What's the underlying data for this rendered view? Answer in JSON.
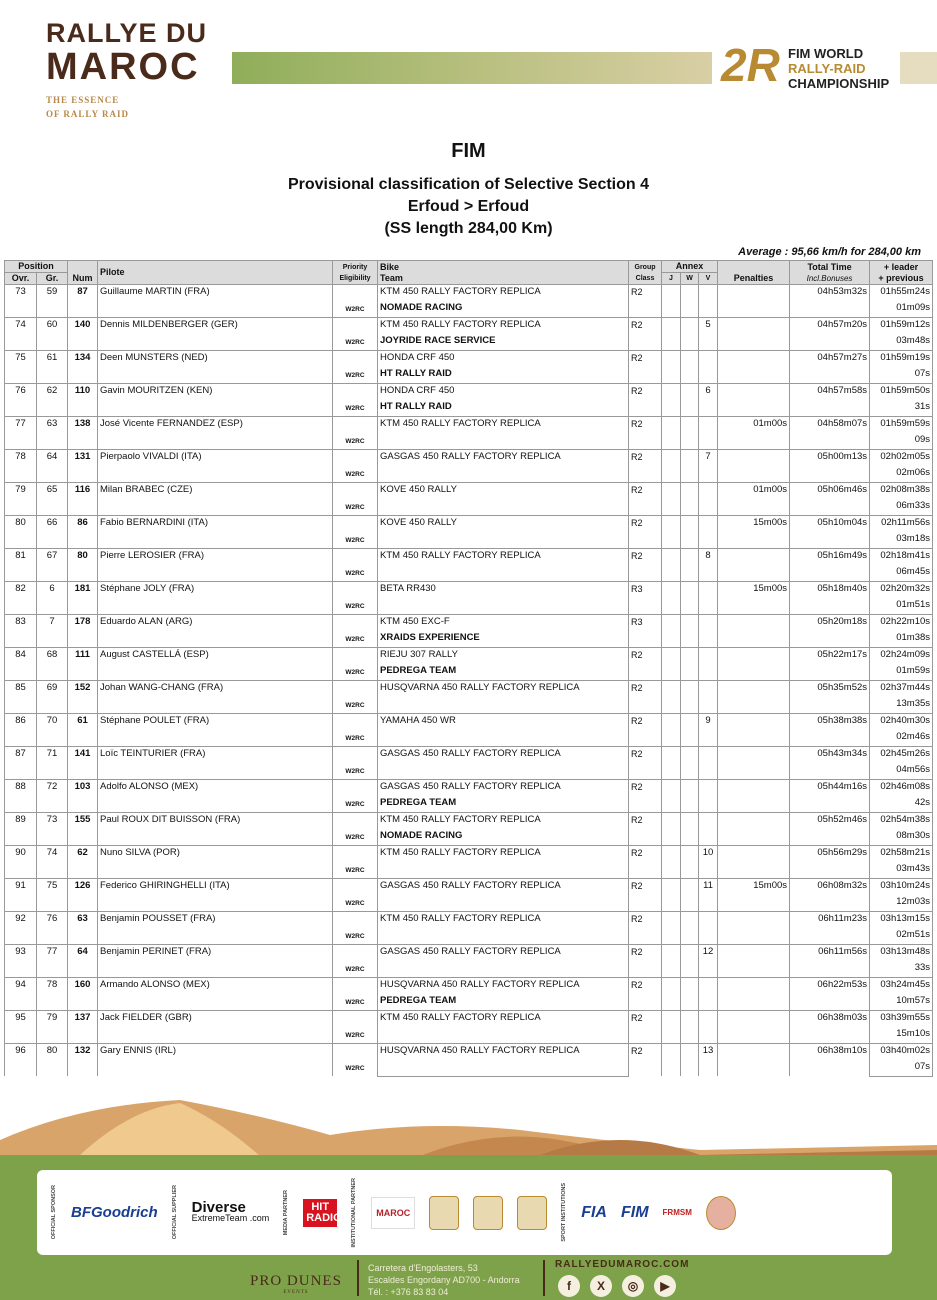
{
  "header": {
    "logo_left_line1": "RALLYE DU",
    "logo_left_line2": "MAROC",
    "logo_left_tag1": "THE ESSENCE",
    "logo_left_tag2": "OF RALLY RAID",
    "logo_right_mark": "2R",
    "logo_right_line1": "FIM WORLD",
    "logo_right_line2": "RALLY-RAID",
    "logo_right_line3": "CHAMPIONSHIP"
  },
  "titles": {
    "org": "FIM",
    "title": "Provisional classification of Selective Section 4",
    "route": "Erfoud > Erfoud",
    "length": "(SS length 284,00 Km)",
    "average": "Average : 95,66 km/h for 284,00 km"
  },
  "columns": {
    "position": "Position",
    "ovr": "Ovr.",
    "gr": "Gr.",
    "num": "Num",
    "pilote": "Pilote",
    "priority": "Priority",
    "eligibility": "Eligibility",
    "bike": "Bike",
    "team": "Team",
    "group": "Group",
    "class": "Class",
    "annex": "Annex",
    "j": "J",
    "w": "W",
    "v": "V",
    "penalties": "Penalties",
    "total": "Total Time",
    "bonuses": "Incl.Bonuses",
    "leader": "+ leader",
    "previous": "+ previous"
  },
  "rows": [
    [
      "73",
      "59",
      "87",
      "Guillaume MARTIN (FRA)",
      "W2RC",
      "KTM 450 RALLY FACTORY REPLICA",
      "NOMADE RACING",
      "R2",
      "",
      "",
      "",
      "",
      "04h53m32s",
      "01h55m24s",
      "01m09s"
    ],
    [
      "74",
      "60",
      "140",
      "Dennis MILDENBERGER (GER)",
      "W2RC",
      "KTM 450 RALLY FACTORY REPLICA",
      "JOYRIDE RACE SERVICE",
      "R2",
      "",
      "",
      "5",
      "",
      "04h57m20s",
      "01h59m12s",
      "03m48s"
    ],
    [
      "75",
      "61",
      "134",
      "Deen MUNSTERS (NED)",
      "W2RC",
      "HONDA CRF 450",
      "HT RALLY RAID",
      "R2",
      "",
      "",
      "",
      "",
      "04h57m27s",
      "01h59m19s",
      "07s"
    ],
    [
      "76",
      "62",
      "110",
      "Gavin MOURITZEN (KEN)",
      "W2RC",
      "HONDA CRF 450",
      "HT RALLY RAID",
      "R2",
      "",
      "",
      "6",
      "",
      "04h57m58s",
      "01h59m50s",
      "31s"
    ],
    [
      "77",
      "63",
      "138",
      "José Vicente FERNANDEZ (ESP)",
      "W2RC",
      "KTM 450 RALLY FACTORY REPLICA",
      "",
      "R2",
      "",
      "",
      "",
      "01m00s",
      "04h58m07s",
      "01h59m59s",
      "09s"
    ],
    [
      "78",
      "64",
      "131",
      "Pierpaolo VIVALDI (ITA)",
      "W2RC",
      "GASGAS 450 RALLY FACTORY REPLICA",
      "",
      "R2",
      "",
      "",
      "7",
      "",
      "05h00m13s",
      "02h02m05s",
      "02m06s"
    ],
    [
      "79",
      "65",
      "116",
      "Milan BRABEC (CZE)",
      "W2RC",
      "KOVE 450 RALLY",
      "",
      "R2",
      "",
      "",
      "",
      "01m00s",
      "05h06m46s",
      "02h08m38s",
      "06m33s"
    ],
    [
      "80",
      "66",
      "86",
      "Fabio BERNARDINI (ITA)",
      "W2RC",
      "KOVE 450 RALLY",
      "",
      "R2",
      "",
      "",
      "",
      "15m00s",
      "05h10m04s",
      "02h11m56s",
      "03m18s"
    ],
    [
      "81",
      "67",
      "80",
      "Pierre LEROSIER (FRA)",
      "W2RC",
      "KTM 450 RALLY FACTORY REPLICA",
      "",
      "R2",
      "",
      "",
      "8",
      "",
      "05h16m49s",
      "02h18m41s",
      "06m45s"
    ],
    [
      "82",
      "6",
      "181",
      "Stéphane JOLY (FRA)",
      "W2RC",
      "BETA RR430",
      "",
      "R3",
      "",
      "",
      "",
      "15m00s",
      "05h18m40s",
      "02h20m32s",
      "01m51s"
    ],
    [
      "83",
      "7",
      "178",
      "Eduardo ALAN (ARG)",
      "W2RC",
      "KTM 450 EXC-F",
      "XRAIDS EXPERIENCE",
      "R3",
      "",
      "",
      "",
      "",
      "05h20m18s",
      "02h22m10s",
      "01m38s"
    ],
    [
      "84",
      "68",
      "111",
      "August CASTELLÁ (ESP)",
      "W2RC",
      "RIEJU 307 RALLY",
      "PEDREGA TEAM",
      "R2",
      "",
      "",
      "",
      "",
      "05h22m17s",
      "02h24m09s",
      "01m59s"
    ],
    [
      "85",
      "69",
      "152",
      "Johan WANG-CHANG (FRA)",
      "W2RC",
      "HUSQVARNA 450 RALLY FACTORY REPLICA",
      "",
      "R2",
      "",
      "",
      "",
      "",
      "05h35m52s",
      "02h37m44s",
      "13m35s"
    ],
    [
      "86",
      "70",
      "61",
      "Stéphane POULET (FRA)",
      "W2RC",
      "YAMAHA 450 WR",
      "",
      "R2",
      "",
      "",
      "9",
      "",
      "05h38m38s",
      "02h40m30s",
      "02m46s"
    ],
    [
      "87",
      "71",
      "141",
      "Loïc TEINTURIER (FRA)",
      "W2RC",
      "GASGAS 450 RALLY FACTORY REPLICA",
      "",
      "R2",
      "",
      "",
      "",
      "",
      "05h43m34s",
      "02h45m26s",
      "04m56s"
    ],
    [
      "88",
      "72",
      "103",
      "Adolfo ALONSO (MEX)",
      "W2RC",
      "GASGAS 450 RALLY FACTORY REPLICA",
      "PEDREGA TEAM",
      "R2",
      "",
      "",
      "",
      "",
      "05h44m16s",
      "02h46m08s",
      "42s"
    ],
    [
      "89",
      "73",
      "155",
      "Paul ROUX DIT BUISSON (FRA)",
      "W2RC",
      "KTM 450 RALLY FACTORY REPLICA",
      "NOMADE RACING",
      "R2",
      "",
      "",
      "",
      "",
      "05h52m46s",
      "02h54m38s",
      "08m30s"
    ],
    [
      "90",
      "74",
      "62",
      "Nuno SILVA (POR)",
      "W2RC",
      "KTM 450 RALLY FACTORY REPLICA",
      "",
      "R2",
      "",
      "",
      "10",
      "",
      "05h56m29s",
      "02h58m21s",
      "03m43s"
    ],
    [
      "91",
      "75",
      "126",
      "Federico GHIRINGHELLI (ITA)",
      "W2RC",
      "GASGAS 450 RALLY FACTORY REPLICA",
      "",
      "R2",
      "",
      "",
      "11",
      "15m00s",
      "06h08m32s",
      "03h10m24s",
      "12m03s"
    ],
    [
      "92",
      "76",
      "63",
      "Benjamin POUSSET (FRA)",
      "W2RC",
      "KTM 450 RALLY FACTORY REPLICA",
      "",
      "R2",
      "",
      "",
      "",
      "",
      "06h11m23s",
      "03h13m15s",
      "02m51s"
    ],
    [
      "93",
      "77",
      "64",
      "Benjamin PERINET (FRA)",
      "W2RC",
      "GASGAS 450 RALLY FACTORY REPLICA",
      "",
      "R2",
      "",
      "",
      "12",
      "",
      "06h11m56s",
      "03h13m48s",
      "33s"
    ],
    [
      "94",
      "78",
      "160",
      "Armando ALONSO (MEX)",
      "W2RC",
      "HUSQVARNA 450 RALLY FACTORY REPLICA",
      "PEDREGA TEAM",
      "R2",
      "",
      "",
      "",
      "",
      "06h22m53s",
      "03h24m45s",
      "10m57s"
    ],
    [
      "95",
      "79",
      "137",
      "Jack FIELDER (GBR)",
      "W2RC",
      "KTM 450 RALLY FACTORY REPLICA",
      "",
      "R2",
      "",
      "",
      "",
      "",
      "06h38m03s",
      "03h39m55s",
      "15m10s"
    ],
    [
      "96",
      "80",
      "132",
      "Gary ENNIS (IRL)",
      "W2RC",
      "HUSQVARNA 450 RALLY FACTORY REPLICA",
      "",
      "R2",
      "",
      "",
      "13",
      "",
      "06h38m10s",
      "03h40m02s",
      "07s"
    ]
  ],
  "footer": {
    "sponsors": {
      "official_sponsor": "OFFICIAL SPONSOR",
      "bfgoodrich": "BFGoodrich",
      "official_supplier": "OFFICIAL SUPPLIER",
      "diverse": "Diverse",
      "diverse_sub": "ExtremeTeam .com",
      "media_partner": "MEDIA PARTNER",
      "hit_radio": "HIT RADIO",
      "institutional": "INSTITUTIONAL PARTNER",
      "maroc": "MAROC",
      "sport_institutions": "SPORT INSTITUTIONS",
      "fia": "FIA",
      "fim": "FIM",
      "frmsm": "FRMSM"
    },
    "organizer": "PRO DUNES",
    "organizer_sub": "EVENTS",
    "address1": "Carretera d'Engolasters, 53",
    "address2": "Escaldes Engordany AD700 - Andorra",
    "phone": "Tél. : +376 83 83 04",
    "website": "RALLYEDUMAROC.COM",
    "social": [
      "f",
      "X",
      "◎",
      "▶"
    ]
  }
}
